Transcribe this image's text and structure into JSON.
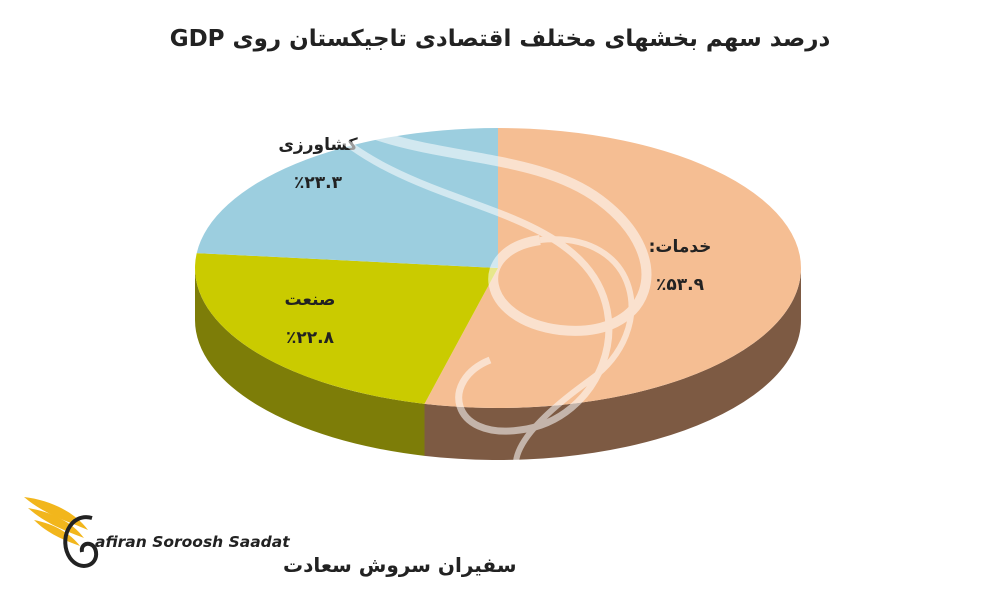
{
  "chart_data": {
    "type": "pie",
    "title": "درصد سهم بخشهای مختلف اقتصادی تاجیکستان روی GDP",
    "slices": [
      {
        "name": "خدمات:",
        "value_label": "٪۵۳.۹",
        "value": 53.9,
        "color": "#F5BE93",
        "side_color": "#7D5A43"
      },
      {
        "name": "صنعت",
        "value_label": "٪۲۲.۸",
        "value": 22.8,
        "color": "#CACB00",
        "side_color": "#7D7D08"
      },
      {
        "name": "کشاورزی",
        "value_label": "٪۲۳.۳",
        "value": 23.3,
        "color": "#9CCEDF",
        "side_color": "#5E8A99"
      }
    ],
    "style": "3d-pie"
  },
  "logo": {
    "name_en": "afiran Soroosh Saadat",
    "name_fa": "سفیران سروش سعادت",
    "accent_color": "#F2B61C"
  }
}
